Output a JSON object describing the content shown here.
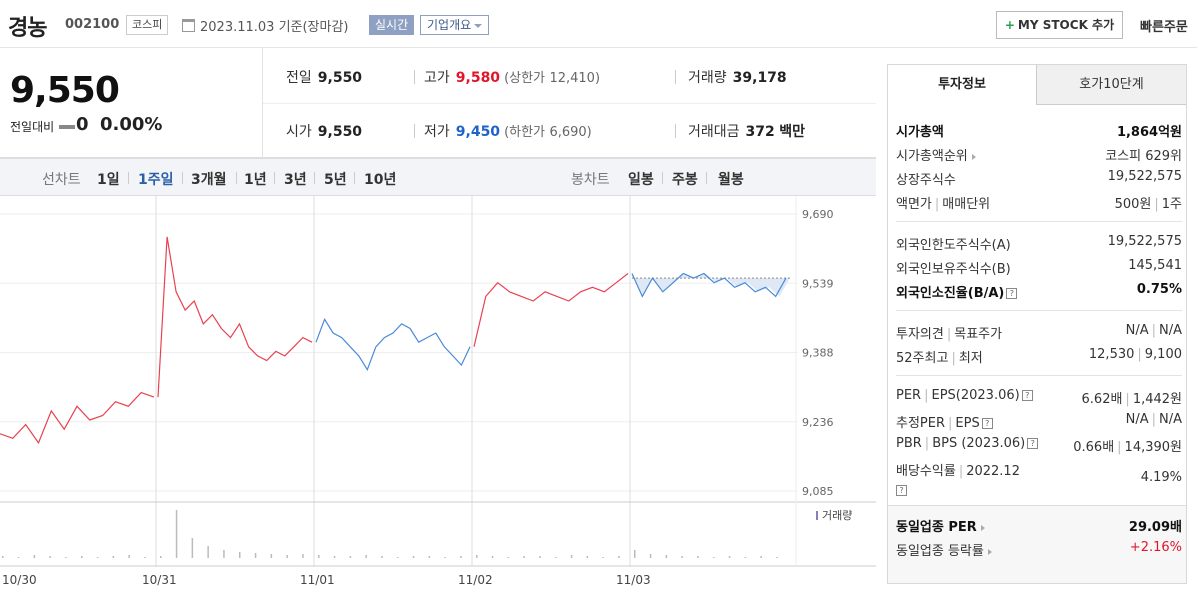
{
  "header": {
    "name": "경농",
    "code": "002100",
    "market": "코스피",
    "date": "2023.11.03 기준(장마감)",
    "realtime_label": "실시간",
    "company_label": "기업개요",
    "mystock_label": "MY STOCK 추가",
    "quick_order_label": "빠른주문"
  },
  "summary": {
    "price": "9,550",
    "change_label": "전일대비",
    "change_value": "0",
    "change_rate": "0.00%",
    "prev_close_label": "전일",
    "prev_close": "9,550",
    "high_label": "고가",
    "high": "9,580",
    "upper_limit_label": "(상한가",
    "upper_limit": "12,410)",
    "volume_label": "거래량",
    "volume": "39,178",
    "open_label": "시가",
    "open": "9,550",
    "low_label": "저가",
    "low": "9,450",
    "lower_limit_label": "(하한가",
    "lower_limit": "6,690)",
    "amount_label": "거래대금",
    "amount": "372",
    "amount_unit": "백만"
  },
  "chart_controls": {
    "line_label": "선차트",
    "periods": [
      "1일",
      "1주일",
      "3개월",
      "1년",
      "3년",
      "5년",
      "10년"
    ],
    "active_period": "1주일",
    "candle_label": "봉차트",
    "candles": [
      "일봉",
      "주봉",
      "월봉"
    ]
  },
  "chart_data": {
    "type": "line",
    "y_ticks": [
      "9,690",
      "9,539",
      "9,388",
      "9,236",
      "9,085"
    ],
    "ylim": [
      9085,
      9690
    ],
    "x_labels": [
      "10/30",
      "10/31",
      "11/01",
      "11/02",
      "11/03"
    ],
    "volume_label": "거래량",
    "series": [
      {
        "values": [
          9210,
          9200,
          9230,
          9190,
          9260,
          9220,
          9270,
          9240,
          9250,
          9280,
          9270,
          9300,
          9290
        ]
      },
      {
        "values": [
          9290,
          9640,
          9520,
          9480,
          9500,
          9450,
          9470,
          9440,
          9420,
          9450,
          9400,
          9380,
          9370,
          9390,
          9380,
          9400,
          9420,
          9410
        ]
      },
      {
        "values": [
          9410,
          9460,
          9430,
          9420,
          9400,
          9380,
          9350,
          9400,
          9420,
          9430,
          9450,
          9440,
          9410,
          9420,
          9430,
          9400,
          9380,
          9360,
          9400
        ]
      },
      {
        "values": [
          9400,
          9510,
          9540,
          9520,
          9510,
          9500,
          9520,
          9510,
          9500,
          9520,
          9530,
          9520,
          9540,
          9560
        ]
      },
      {
        "values": [
          9560,
          9510,
          9550,
          9520,
          9540,
          9560,
          9550,
          9560,
          9540,
          9550,
          9530,
          9540,
          9520,
          9530,
          9510,
          9550
        ]
      }
    ]
  },
  "panel": {
    "tab_info": "투자정보",
    "tab_quote": "호가10단계",
    "market_cap_label": "시가총액",
    "market_cap": "1,864억원",
    "market_cap_rank_label": "시가총액순위",
    "market_cap_rank": "코스피 629위",
    "listed_shares_label": "상장주식수",
    "listed_shares": "19,522,575",
    "par_label": "액면가",
    "unit_label": "매매단위",
    "par_value": "500원",
    "unit_value": "1주",
    "foreign_limit_label": "외국인한도주식수(A)",
    "foreign_limit": "19,522,575",
    "foreign_hold_label": "외국인보유주식수(B)",
    "foreign_hold": "145,541",
    "foreign_ratio_label": "외국인소진율(B/A)",
    "foreign_ratio": "0.75%",
    "opinion_label": "투자의견",
    "target_label": "목표주가",
    "opinion": "N/A",
    "target": "N/A",
    "w52_high_label": "52주최고",
    "w52_low_label": "최저",
    "w52_high": "12,530",
    "w52_low": "9,100",
    "per_label": "PER",
    "eps_label": "EPS(2023.06)",
    "per": "6.62배",
    "eps": "1,442원",
    "est_per_label": "추정PER",
    "est_eps_label": "EPS",
    "est_per": "N/A",
    "est_eps": "N/A",
    "pbr_label": "PBR",
    "bps_label": "BPS (2023.06)",
    "pbr": "0.66배",
    "bps": "14,390원",
    "dividend_label": "배당수익률",
    "dividend_year": "2022.12",
    "dividend": "4.19%",
    "industry_per_label": "동일업종 PER",
    "industry_per": "29.09배",
    "industry_change_label": "동일업종 등락률",
    "industry_change": "+2.16%"
  }
}
